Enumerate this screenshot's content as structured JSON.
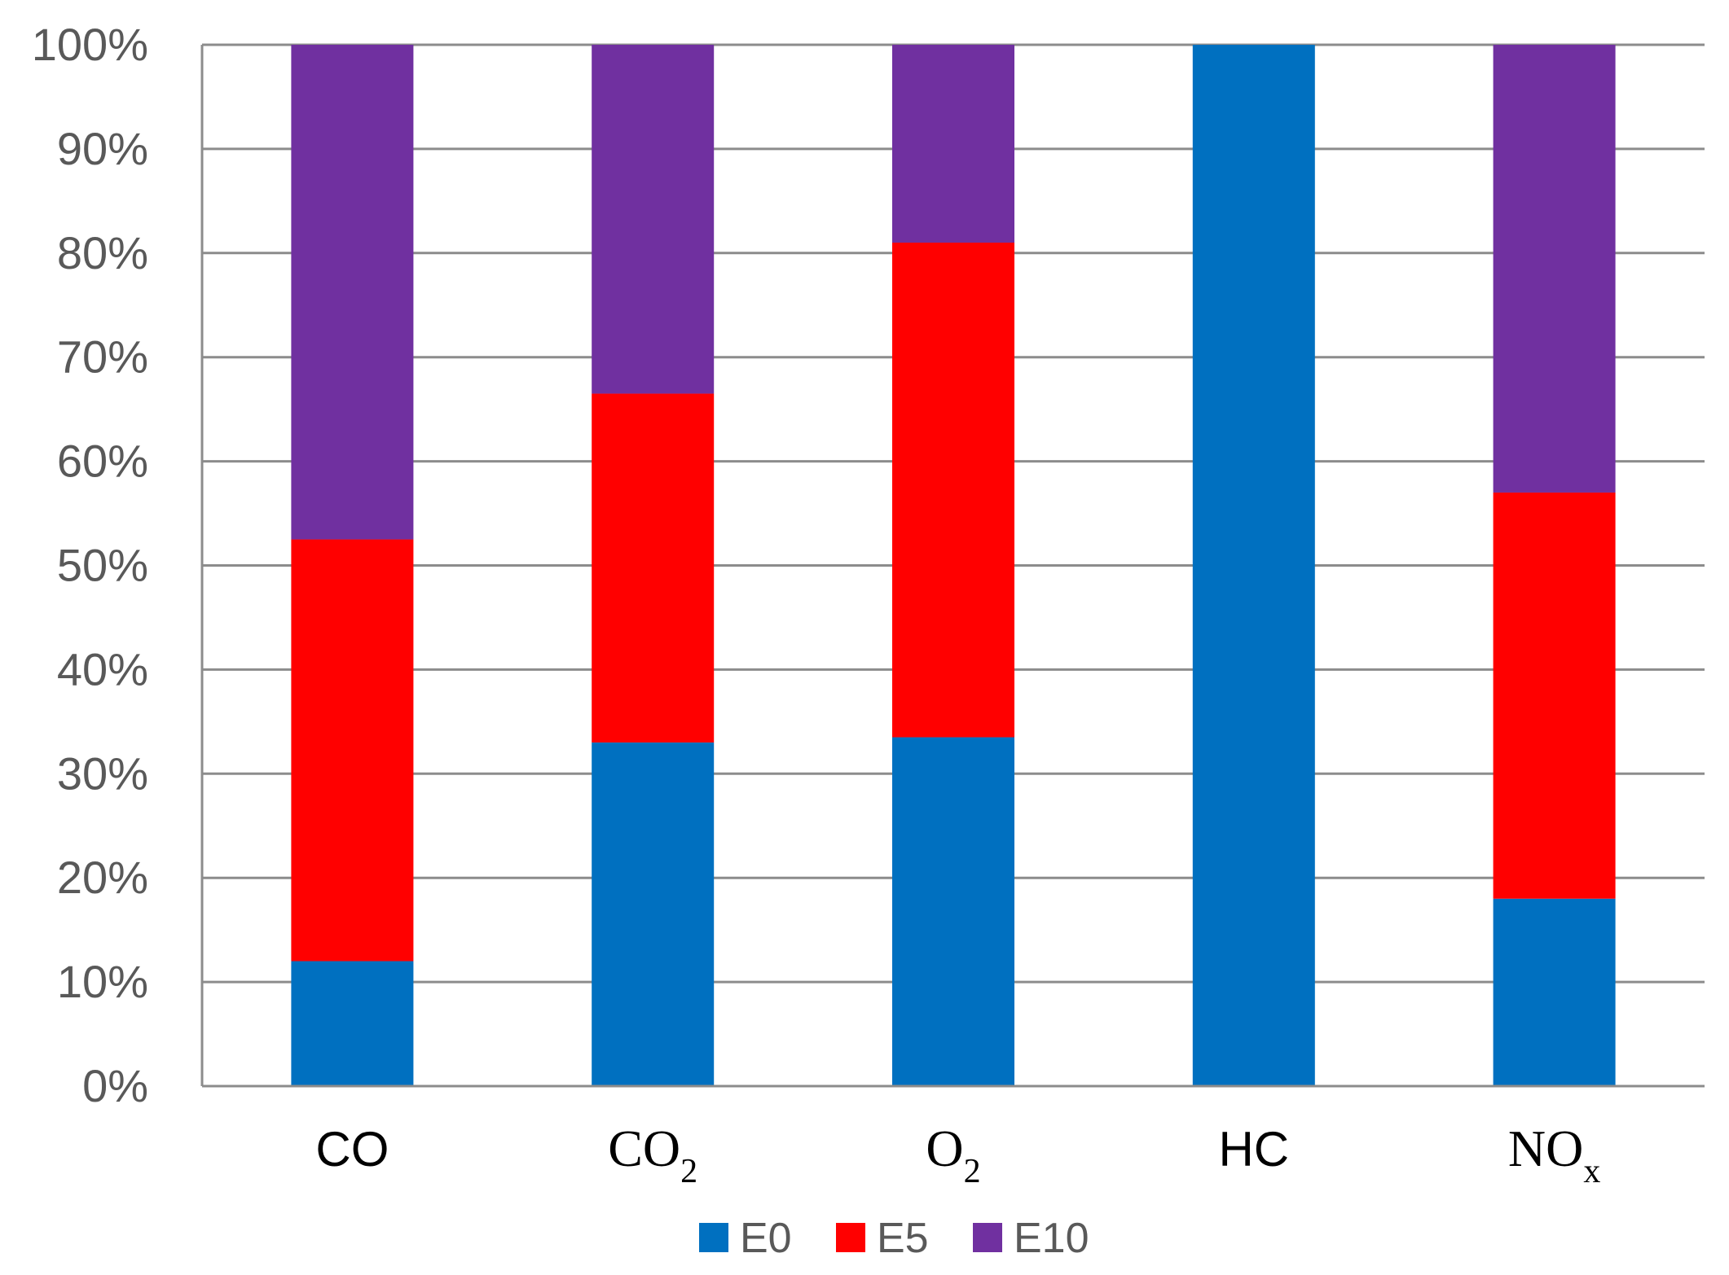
{
  "chart_data": {
    "type": "bar",
    "stacked": true,
    "percent_stacked": true,
    "title": "",
    "xlabel": "",
    "ylabel": "",
    "ylim": [
      0,
      100
    ],
    "grid": true,
    "legend_position": "bottom",
    "y_ticks": [
      "0%",
      "10%",
      "20%",
      "30%",
      "40%",
      "50%",
      "60%",
      "70%",
      "80%",
      "90%",
      "100%"
    ],
    "categories": [
      {
        "label": "CO",
        "main": "CO",
        "sub": "",
        "font": "sans"
      },
      {
        "label": "CO2",
        "main": "CO",
        "sub": "2",
        "font": "serif"
      },
      {
        "label": "O2",
        "main": "O",
        "sub": "2",
        "font": "serif"
      },
      {
        "label": "HC",
        "main": "HC",
        "sub": "",
        "font": "sans"
      },
      {
        "label": "NOx",
        "main": "NO",
        "sub": "x",
        "font": "serif"
      }
    ],
    "series": [
      {
        "name": "E0",
        "color": "#0070C0",
        "values": [
          12,
          33,
          33.5,
          100,
          18
        ]
      },
      {
        "name": "E5",
        "color": "#FF0000",
        "values": [
          40.5,
          33.5,
          47.5,
          0,
          39
        ]
      },
      {
        "name": "E10",
        "color": "#7030A0",
        "values": [
          47.5,
          33.5,
          19,
          0,
          43
        ]
      }
    ]
  }
}
